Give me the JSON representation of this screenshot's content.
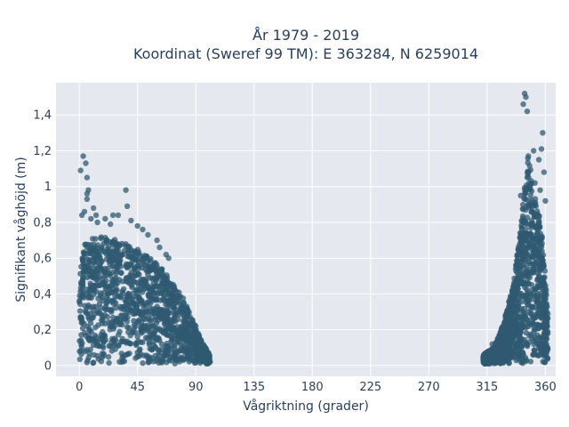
{
  "chart_data": {
    "type": "scatter",
    "title_line1": "År 1979 - 2019",
    "title_line2": "Koordinat (Sweref 99 TM): E 363284, N 6259014",
    "xlabel": "Vågriktning (grader)",
    "ylabel": "Signifikant våghöjd (m)",
    "xlim": [
      -18,
      368
    ],
    "ylim": [
      -0.06,
      1.58
    ],
    "x_ticks": [
      {
        "value": 0,
        "label": "0"
      },
      {
        "value": 45,
        "label": "45"
      },
      {
        "value": 90,
        "label": "90"
      },
      {
        "value": 135,
        "label": "135"
      },
      {
        "value": 180,
        "label": "180"
      },
      {
        "value": 225,
        "label": "225"
      },
      {
        "value": 270,
        "label": "270"
      },
      {
        "value": 315,
        "label": "315"
      },
      {
        "value": 360,
        "label": "360"
      }
    ],
    "y_ticks": [
      {
        "value": 0,
        "label": "0"
      },
      {
        "value": 0.2,
        "label": "0,2"
      },
      {
        "value": 0.4,
        "label": "0,4"
      },
      {
        "value": 0.6,
        "label": "0,6"
      },
      {
        "value": 0.8,
        "label": "0,8"
      },
      {
        "value": 1.0,
        "label": "1"
      },
      {
        "value": 1.2,
        "label": "1,2"
      },
      {
        "value": 1.4,
        "label": "1,4"
      }
    ],
    "grid": true,
    "marker_color": "#2f5a72",
    "plot_bg": "#e5e8ef",
    "series": [
      {
        "density_clusters": [
          {
            "x_range": [
              0,
              101
            ],
            "ymin": 0.01,
            "envelope": [
              [
                0,
                0.65
              ],
              [
                10,
                0.72
              ],
              [
                20,
                0.72
              ],
              [
                30,
                0.7
              ],
              [
                40,
                0.68
              ],
              [
                50,
                0.62
              ],
              [
                60,
                0.58
              ],
              [
                70,
                0.48
              ],
              [
                80,
                0.38
              ],
              [
                85,
                0.3
              ],
              [
                90,
                0.22
              ],
              [
                95,
                0.13
              ],
              [
                101,
                0.06
              ]
            ]
          },
          {
            "x_range": [
              312,
              362
            ],
            "ymin": 0.01,
            "envelope": [
              [
                312,
                0.06
              ],
              [
                320,
                0.1
              ],
              [
                325,
                0.18
              ],
              [
                330,
                0.3
              ],
              [
                335,
                0.45
              ],
              [
                340,
                0.7
              ],
              [
                344,
                1.0
              ],
              [
                347,
                1.2
              ],
              [
                350,
                1.0
              ],
              [
                355,
                0.85
              ],
              [
                358,
                0.7
              ],
              [
                360,
                0.5
              ],
              [
                362,
                0.3
              ]
            ]
          }
        ],
        "outliers": [
          [
            3,
            1.17
          ],
          [
            5,
            1.13
          ],
          [
            1,
            1.09
          ],
          [
            6,
            1.05
          ],
          [
            7,
            0.98
          ],
          [
            6,
            0.96
          ],
          [
            6,
            0.93
          ],
          [
            36,
            0.98
          ],
          [
            37,
            0.89
          ],
          [
            4,
            0.86
          ],
          [
            2,
            0.84
          ],
          [
            9,
            0.82
          ],
          [
            14,
            0.8
          ],
          [
            20,
            0.82
          ],
          [
            26,
            0.84
          ],
          [
            30,
            0.84
          ],
          [
            40,
            0.81
          ],
          [
            45,
            0.78
          ],
          [
            49,
            0.76
          ],
          [
            53,
            0.73
          ],
          [
            60,
            0.7
          ],
          [
            62,
            0.66
          ],
          [
            67,
            0.62
          ],
          [
            69,
            0.6
          ],
          [
            11,
            0.88
          ],
          [
            13,
            0.84
          ],
          [
            24,
            0.79
          ],
          [
            344,
            1.52
          ],
          [
            345,
            1.5
          ],
          [
            343,
            1.46
          ],
          [
            346,
            1.42
          ],
          [
            358,
            1.3
          ],
          [
            357,
            1.21
          ],
          [
            351,
            1.2
          ],
          [
            355,
            1.15
          ],
          [
            359,
            1.08
          ],
          [
            352,
            1.02
          ],
          [
            356,
            0.98
          ],
          [
            341,
            0.95
          ],
          [
            360,
            0.92
          ],
          [
            314,
            0.06
          ],
          [
            316,
            0.08
          ],
          [
            319,
            0.12
          ]
        ]
      }
    ]
  }
}
